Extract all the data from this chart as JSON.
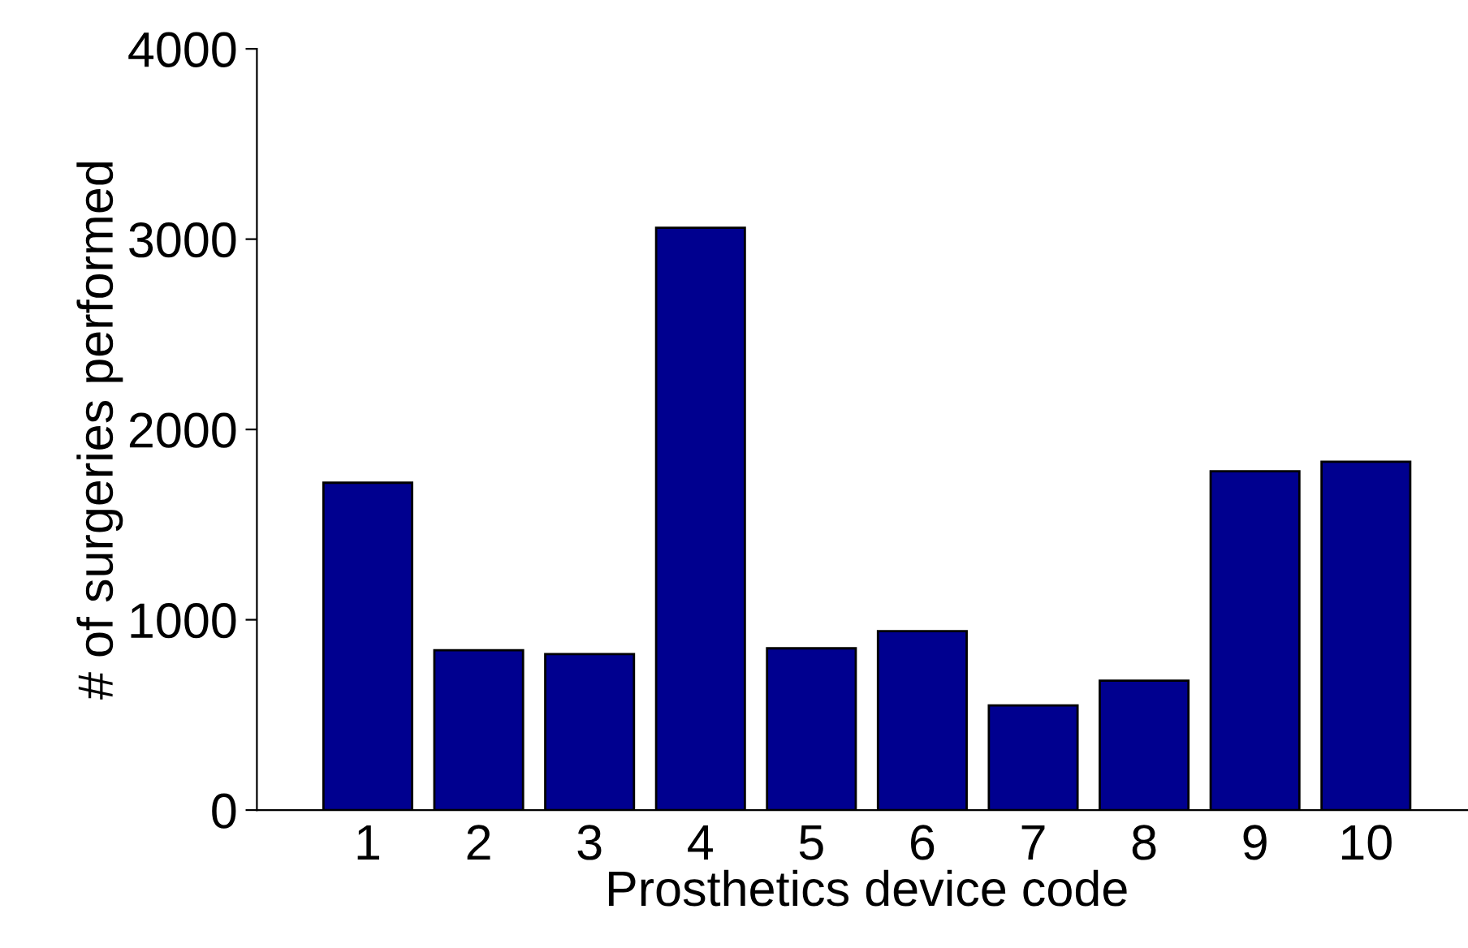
{
  "chart_data": {
    "type": "bar",
    "xlabel": "Prosthetics device code",
    "ylabel": "# of surgeries performed",
    "categories": [
      "1",
      "2",
      "3",
      "4",
      "5",
      "6",
      "7",
      "8",
      "9",
      "10"
    ],
    "values": [
      1720,
      840,
      820,
      3060,
      850,
      940,
      550,
      680,
      1780,
      1830
    ],
    "color": "#00008f",
    "ylim": [
      0,
      4000
    ],
    "yticks": [
      0,
      1000,
      2000,
      3000,
      4000
    ],
    "grid": false,
    "legend": false
  }
}
